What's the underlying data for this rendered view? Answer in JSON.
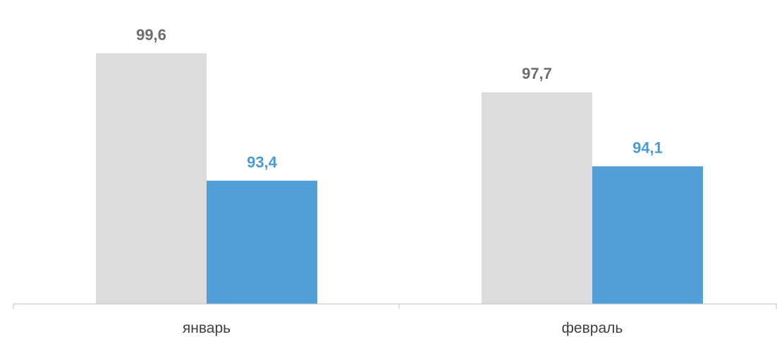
{
  "chart_data": {
    "type": "bar",
    "categories": [
      "январь",
      "февраль"
    ],
    "series": [
      {
        "values": [
          99.6,
          97.7
        ],
        "labels": [
          "99,6",
          "97,7"
        ],
        "color": "#dcdcdc",
        "label_color": "#6d6d6d"
      },
      {
        "values": [
          93.4,
          94.1
        ],
        "labels": [
          "93,4",
          "94,1"
        ],
        "color": "#529fd7",
        "label_color": "#4a9ad4"
      }
    ],
    "title": "",
    "xlabel": "",
    "ylabel": "",
    "ylim": [
      87.4,
      100.6
    ],
    "grid": false,
    "legend": "none"
  }
}
